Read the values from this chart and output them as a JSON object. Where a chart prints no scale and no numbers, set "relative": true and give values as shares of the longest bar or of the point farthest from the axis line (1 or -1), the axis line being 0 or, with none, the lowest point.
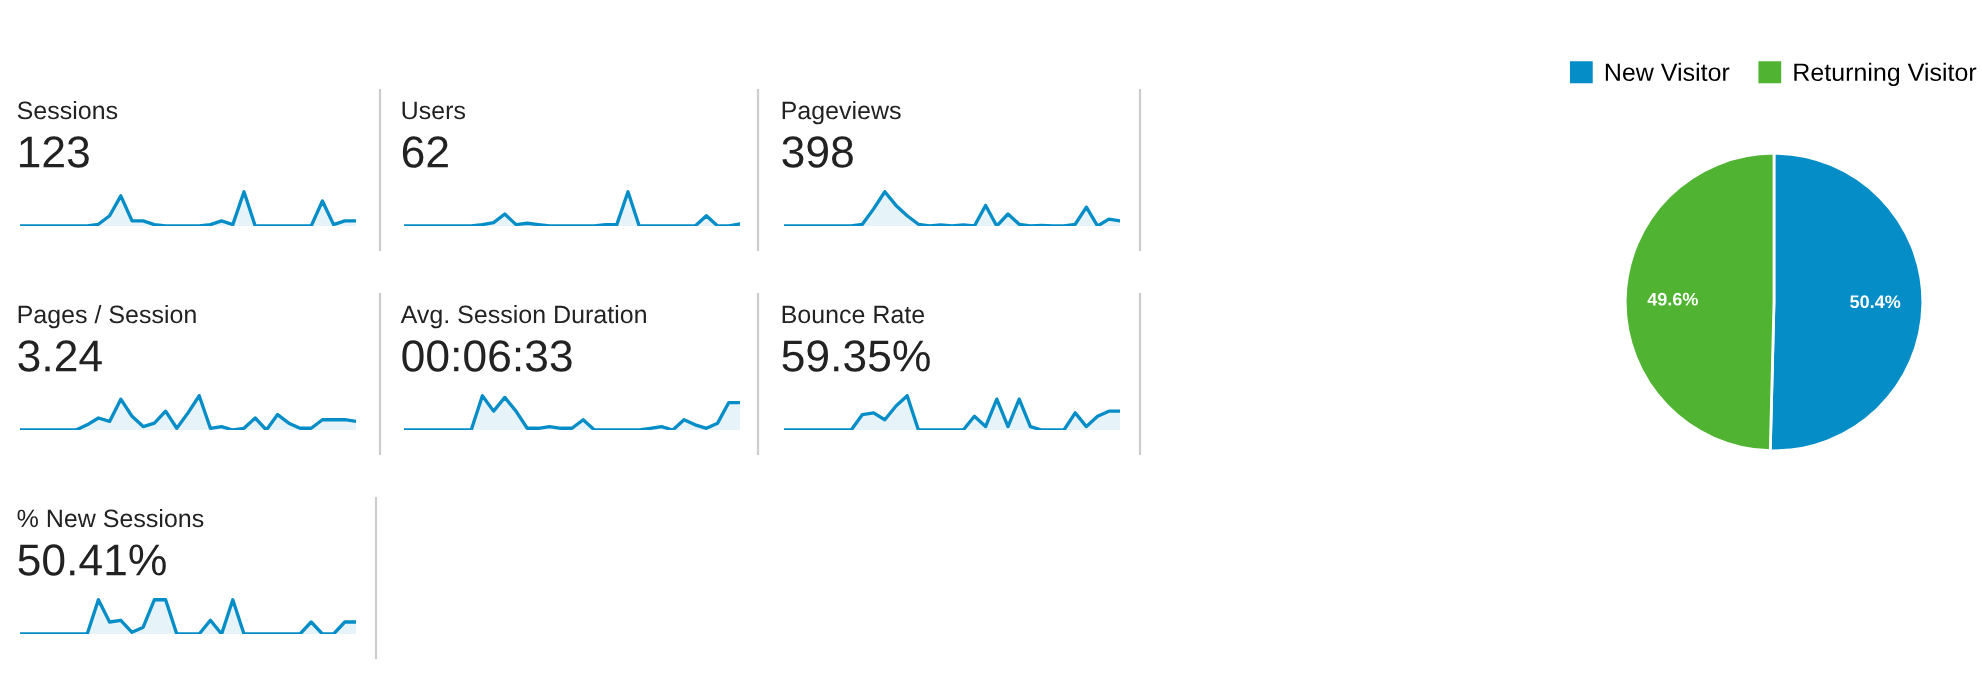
{
  "chart_data": [
    {
      "type": "area",
      "title": "Sessions",
      "subtitle": "123",
      "relative": true,
      "categories": [
        null,
        null,
        null,
        null,
        null,
        null,
        null,
        null,
        null,
        null,
        null,
        null,
        null,
        null,
        null,
        null,
        null,
        null,
        null,
        null,
        null,
        null,
        null,
        null,
        null,
        null,
        null,
        null,
        null,
        null,
        null
      ],
      "color": "#058dc7",
      "values": [
        0,
        0,
        0,
        0,
        0,
        0,
        0,
        0.05,
        0.3,
        0.88,
        0.15,
        0.15,
        0.04,
        0,
        0,
        0,
        0,
        0.04,
        0.15,
        0.04,
        1,
        0,
        0,
        0,
        0,
        0,
        0,
        0.73,
        0.04,
        0.15,
        0.15
      ]
    },
    {
      "type": "area",
      "title": "Users",
      "subtitle": "62",
      "relative": true,
      "categories": [
        null,
        null,
        null,
        null,
        null,
        null,
        null,
        null,
        null,
        null,
        null,
        null,
        null,
        null,
        null,
        null,
        null,
        null,
        null,
        null,
        null,
        null,
        null,
        null,
        null,
        null,
        null,
        null,
        null,
        null,
        null
      ],
      "color": "#058dc7",
      "values": [
        0,
        0,
        0,
        0,
        0,
        0,
        0,
        0.04,
        0.1,
        0.35,
        0.04,
        0.08,
        0.04,
        0,
        0,
        0,
        0,
        0,
        0.04,
        0.04,
        1,
        0,
        0,
        0,
        0,
        0,
        0,
        0.3,
        0,
        0,
        0.06
      ]
    },
    {
      "type": "area",
      "title": "Pageviews",
      "subtitle": "398",
      "relative": true,
      "categories": [
        null,
        null,
        null,
        null,
        null,
        null,
        null,
        null,
        null,
        null,
        null,
        null,
        null,
        null,
        null,
        null,
        null,
        null,
        null,
        null,
        null,
        null,
        null,
        null,
        null,
        null,
        null,
        null,
        null,
        null,
        null
      ],
      "color": "#058dc7",
      "values": [
        0,
        0,
        0,
        0,
        0,
        0,
        0,
        0.05,
        0.5,
        1,
        0.6,
        0.3,
        0.05,
        0,
        0.03,
        0,
        0.03,
        0,
        0.6,
        0,
        0.35,
        0.05,
        0,
        0.02,
        0,
        0,
        0.05,
        0.55,
        0,
        0.2,
        0.15
      ]
    },
    {
      "type": "area",
      "title": "Pages / Session",
      "subtitle": "3.24",
      "relative": true,
      "categories": [
        null,
        null,
        null,
        null,
        null,
        null,
        null,
        null,
        null,
        null,
        null,
        null,
        null,
        null,
        null,
        null,
        null,
        null,
        null,
        null,
        null,
        null,
        null,
        null,
        null,
        null,
        null,
        null,
        null,
        null,
        null
      ],
      "color": "#058dc7",
      "values": [
        0,
        0,
        0,
        0,
        0,
        0,
        0.15,
        0.35,
        0.25,
        0.9,
        0.4,
        0.1,
        0.2,
        0.55,
        0.05,
        0.5,
        1,
        0.05,
        0.1,
        0,
        0.05,
        0.35,
        0,
        0.45,
        0.2,
        0.05,
        0.05,
        0.3,
        0.3,
        0.3,
        0.25
      ]
    },
    {
      "type": "area",
      "title": "Avg. Session Duration",
      "subtitle": "00:06:33",
      "relative": true,
      "categories": [
        null,
        null,
        null,
        null,
        null,
        null,
        null,
        null,
        null,
        null,
        null,
        null,
        null,
        null,
        null,
        null,
        null,
        null,
        null,
        null,
        null,
        null,
        null,
        null,
        null,
        null,
        null,
        null,
        null,
        null,
        null
      ],
      "color": "#058dc7",
      "values": [
        0,
        0,
        0,
        0,
        0,
        0,
        0,
        1,
        0.55,
        0.95,
        0.55,
        0.05,
        0.05,
        0.1,
        0.05,
        0.05,
        0.3,
        0,
        0,
        0,
        0,
        0,
        0.05,
        0.1,
        0,
        0.3,
        0.15,
        0.05,
        0.2,
        0.8,
        0.8
      ]
    },
    {
      "type": "area",
      "title": "Bounce Rate",
      "subtitle": "59.35%",
      "relative": true,
      "categories": [
        null,
        null,
        null,
        null,
        null,
        null,
        null,
        null,
        null,
        null,
        null,
        null,
        null,
        null,
        null,
        null,
        null,
        null,
        null,
        null,
        null,
        null,
        null,
        null,
        null,
        null,
        null,
        null,
        null,
        null,
        null
      ],
      "color": "#058dc7",
      "values": [
        0,
        0,
        0,
        0,
        0,
        0,
        0,
        0.45,
        0.5,
        0.3,
        0.7,
        1,
        0,
        0,
        0,
        0,
        0,
        0.4,
        0.1,
        0.9,
        0.1,
        0.9,
        0.1,
        0,
        0,
        0,
        0.5,
        0.1,
        0.4,
        0.55,
        0.55
      ]
    },
    {
      "type": "area",
      "title": "% New Sessions",
      "subtitle": "50.41%",
      "relative": true,
      "categories": [
        null,
        null,
        null,
        null,
        null,
        null,
        null,
        null,
        null,
        null,
        null,
        null,
        null,
        null,
        null,
        null,
        null,
        null,
        null,
        null,
        null,
        null,
        null,
        null,
        null,
        null,
        null,
        null,
        null,
        null,
        null
      ],
      "color": "#058dc7",
      "values": [
        0,
        0,
        0,
        0,
        0,
        0,
        0,
        1,
        0.35,
        0.4,
        0.05,
        0.2,
        1,
        1,
        0,
        0,
        0,
        0.4,
        0,
        1,
        0,
        0,
        0,
        0,
        0,
        0,
        0.35,
        0,
        0,
        0.35,
        0.35
      ]
    },
    {
      "type": "pie",
      "categories": [
        "New Visitor",
        "Returning Visitor"
      ],
      "values": [
        50.4,
        49.6
      ],
      "colors": [
        "#058dc7",
        "#50b432"
      ],
      "value_labels": [
        "50.4%",
        "49.6%"
      ],
      "legend": "top"
    }
  ]
}
